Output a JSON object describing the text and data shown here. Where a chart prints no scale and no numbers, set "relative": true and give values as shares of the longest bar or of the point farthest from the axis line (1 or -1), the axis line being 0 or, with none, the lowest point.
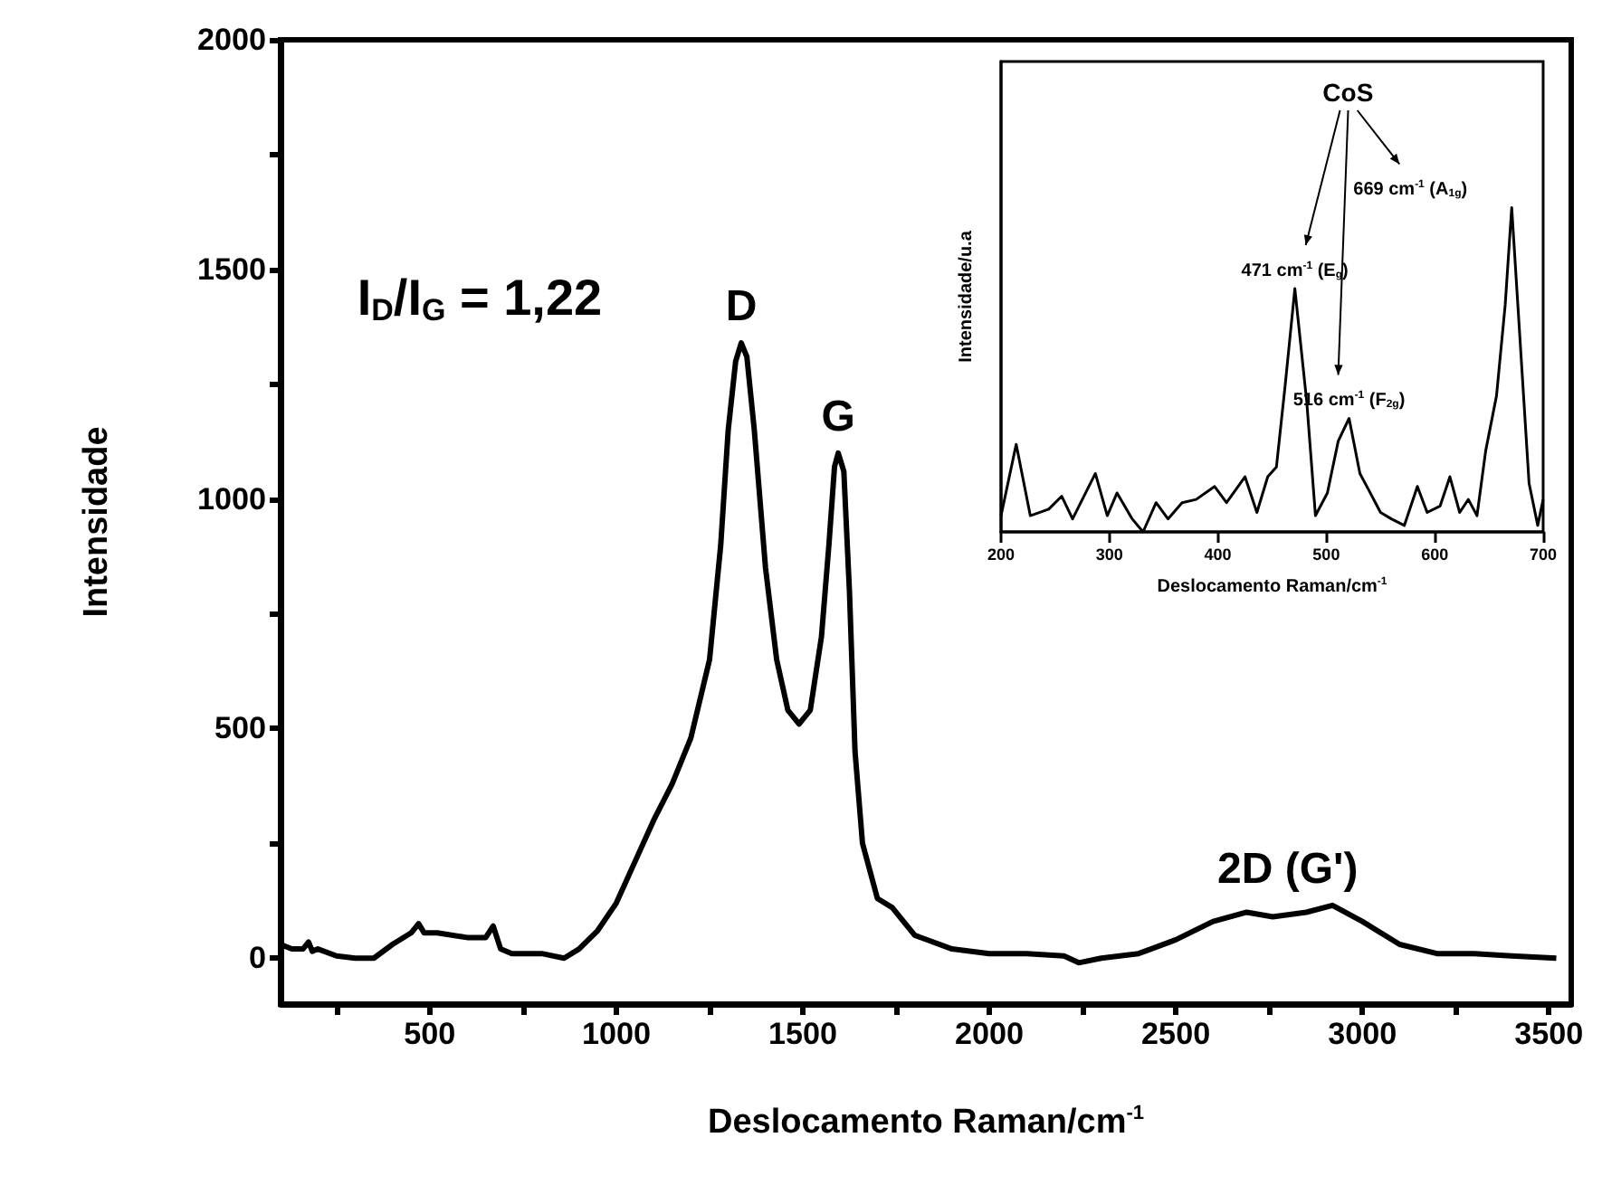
{
  "chart_data": [
    {
      "type": "line",
      "xlabel": "Deslocamento Raman/cm$^{-1}$",
      "ylabel": "Intensidade",
      "marker": "none",
      "x": [
        100,
        130,
        160,
        175,
        185,
        200,
        250,
        300,
        350,
        400,
        450,
        470,
        485,
        520,
        600,
        650,
        670,
        690,
        720,
        800,
        860,
        900,
        950,
        1000,
        1050,
        1100,
        1150,
        1200,
        1250,
        1280,
        1300,
        1320,
        1335,
        1350,
        1370,
        1400,
        1430,
        1460,
        1490,
        1520,
        1550,
        1570,
        1585,
        1595,
        1610,
        1625,
        1640,
        1660,
        1700,
        1740,
        1760,
        1800,
        1900,
        2000,
        2100,
        2200,
        2240,
        2300,
        2400,
        2500,
        2600,
        2690,
        2760,
        2850,
        2920,
        3000,
        3100,
        3200,
        3300,
        3400,
        3520
      ],
      "series": [
        {
          "color": "#000000",
          "values": [
            30,
            20,
            20,
            35,
            15,
            20,
            5,
            0,
            0,
            30,
            55,
            75,
            55,
            55,
            45,
            45,
            70,
            20,
            10,
            10,
            0,
            20,
            60,
            120,
            210,
            300,
            380,
            480,
            650,
            900,
            1150,
            1300,
            1340,
            1310,
            1150,
            850,
            650,
            540,
            510,
            540,
            700,
            900,
            1070,
            1100,
            1060,
            800,
            450,
            250,
            130,
            110,
            90,
            50,
            20,
            10,
            10,
            5,
            -10,
            0,
            10,
            40,
            80,
            100,
            90,
            100,
            115,
            80,
            30,
            10,
            10,
            5,
            0
          ]
        }
      ],
      "xlim": [
        100,
        3560
      ],
      "xticks": [
        {
          "value": 250,
          "label": null
        },
        500,
        {
          "value": 750,
          "label": null
        },
        1000,
        {
          "value": 1250,
          "label": null
        },
        1500,
        {
          "value": 1750,
          "label": null
        },
        2000,
        {
          "value": 2250,
          "label": null
        },
        2500,
        {
          "value": 2750,
          "label": null
        },
        3000,
        {
          "value": 3250,
          "label": null
        },
        3500
      ],
      "ylim": [
        -100,
        2000
      ],
      "yticks": [
        0,
        {
          "value": 250,
          "label": null
        },
        500,
        {
          "value": 750,
          "label": null
        },
        1000,
        {
          "value": 1250,
          "label": null
        },
        1500,
        {
          "value": 1750,
          "label": null
        },
        2000
      ],
      "annotations": [
        "I$_{D}$/I$_{G}$ = 1,22",
        {
          "text": "D",
          "x": 1335,
          "y": 1340
        },
        {
          "text": "G",
          "x": 1595,
          "y": 1100
        },
        {
          "text": "2D (G')",
          "x": 2800,
          "y": 115
        }
      ]
    },
    {
      "type": "line",
      "xlabel": "Deslocamento Raman/cm$^{-1}$",
      "ylabel": "Intensidade/u.a",
      "marker": "none",
      "relative": true,
      "x": [
        200,
        214,
        227,
        244,
        256,
        266,
        287,
        298,
        307,
        321,
        331,
        343,
        354,
        367,
        380,
        397,
        408,
        425,
        436,
        446,
        454,
        462,
        471,
        482,
        490,
        501,
        511,
        521,
        531,
        539,
        550,
        560,
        572,
        584,
        593,
        605,
        614,
        623,
        631,
        639,
        647,
        657,
        665,
        671,
        687,
        695,
        700
      ],
      "series": [
        {
          "color": "#000000",
          "values": [
            0.05,
            0.27,
            0.05,
            0.07,
            0.11,
            0.04,
            0.18,
            0.05,
            0.12,
            0.04,
            0.0,
            0.09,
            0.04,
            0.09,
            0.1,
            0.14,
            0.09,
            0.17,
            0.06,
            0.17,
            0.2,
            0.45,
            0.75,
            0.4,
            0.05,
            0.12,
            0.28,
            0.35,
            0.18,
            0.13,
            0.06,
            0.04,
            0.02,
            0.14,
            0.06,
            0.08,
            0.17,
            0.06,
            0.1,
            0.05,
            0.25,
            0.42,
            0.7,
            1.0,
            0.15,
            0.02,
            0.1
          ]
        }
      ],
      "xlim": [
        200,
        700
      ],
      "xticks": [
        200,
        300,
        400,
        500,
        600,
        700
      ],
      "annotations": [
        "CoS",
        {
          "text": "471 cm$^{-1}$ (E$_{g}$)",
          "x": 471,
          "y": 0.75
        },
        {
          "text": "516 cm$^{-1}$ (F$_{2g}$)",
          "x": 521,
          "y": 0.35
        },
        {
          "text": "669 cm$^{-1}$ (A$_{1g}$)",
          "x": 671,
          "y": 1.0
        }
      ]
    }
  ]
}
